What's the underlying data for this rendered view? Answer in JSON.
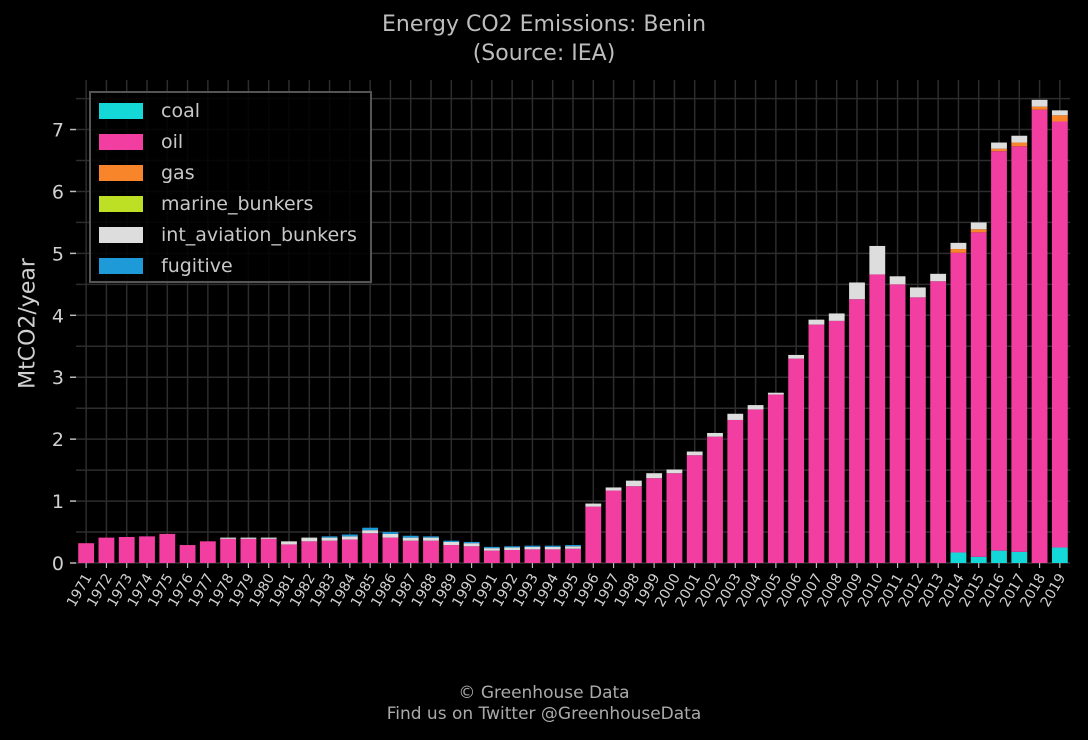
{
  "title": "Energy CO2 Emissions: Benin",
  "subtitle": "(Source: IEA)",
  "footer_line1": "© Greenhouse Data",
  "footer_line2": "Find us on Twitter @GreenhouseData",
  "colors": {
    "coal": "#14d7d7",
    "oil": "#f23ea1",
    "gas": "#f9852a",
    "marine_bunkers": "#bde024",
    "int_aviation_bunkers": "#dddddd",
    "fugitive": "#1f9ad9",
    "grid": "#2d2d2d",
    "background": "#000000"
  },
  "chart_data": {
    "type": "bar",
    "stacked": true,
    "title": "Energy CO2 Emissions: Benin",
    "subtitle": "(Source: IEA)",
    "ylabel": "MtCO2/year",
    "xlabel": "",
    "ylim": [
      0,
      7.8
    ],
    "yticks": [
      0,
      1,
      2,
      3,
      4,
      5,
      6,
      7
    ],
    "grid": true,
    "legend_position": "top-left",
    "categories": [
      "1971",
      "1972",
      "1973",
      "1974",
      "1975",
      "1976",
      "1977",
      "1978",
      "1979",
      "1980",
      "1981",
      "1982",
      "1983",
      "1984",
      "1985",
      "1986",
      "1987",
      "1988",
      "1989",
      "1990",
      "1991",
      "1992",
      "1993",
      "1994",
      "1995",
      "1996",
      "1997",
      "1998",
      "1999",
      "2000",
      "2001",
      "2002",
      "2003",
      "2004",
      "2005",
      "2006",
      "2007",
      "2008",
      "2009",
      "2010",
      "2011",
      "2012",
      "2013",
      "2014",
      "2015",
      "2016",
      "2017",
      "2018",
      "2019"
    ],
    "series": [
      {
        "name": "coal",
        "values": [
          0,
          0,
          0,
          0,
          0,
          0,
          0,
          0,
          0,
          0,
          0,
          0,
          0,
          0,
          0,
          0,
          0,
          0,
          0,
          0,
          0,
          0,
          0,
          0,
          0,
          0,
          0,
          0,
          0,
          0,
          0,
          0,
          0,
          0,
          0,
          0,
          0,
          0,
          0,
          0,
          0,
          0,
          0,
          0.17,
          0.1,
          0.2,
          0.18,
          0,
          0.25
        ]
      },
      {
        "name": "oil",
        "values": [
          0.32,
          0.41,
          0.42,
          0.43,
          0.47,
          0.29,
          0.35,
          0.39,
          0.39,
          0.39,
          0.3,
          0.35,
          0.36,
          0.38,
          0.48,
          0.41,
          0.36,
          0.36,
          0.29,
          0.27,
          0.2,
          0.21,
          0.22,
          0.22,
          0.23,
          0.91,
          1.17,
          1.24,
          1.37,
          1.45,
          1.74,
          2.04,
          2.31,
          2.48,
          2.72,
          3.3,
          3.85,
          3.91,
          4.26,
          4.66,
          4.5,
          4.29,
          4.55,
          4.84,
          5.24,
          6.45,
          6.55,
          7.32,
          6.88
        ]
      },
      {
        "name": "gas",
        "values": [
          0,
          0,
          0,
          0,
          0,
          0,
          0,
          0,
          0,
          0,
          0,
          0,
          0,
          0,
          0,
          0,
          0,
          0,
          0,
          0,
          0,
          0,
          0,
          0,
          0,
          0,
          0,
          0,
          0,
          0,
          0,
          0,
          0,
          0,
          0,
          0,
          0,
          0,
          0,
          0,
          0,
          0,
          0,
          0.06,
          0.05,
          0.04,
          0.06,
          0.05,
          0.1
        ]
      },
      {
        "name": "marine_bunkers",
        "values": [
          0,
          0,
          0,
          0,
          0,
          0,
          0,
          0,
          0,
          0,
          0,
          0,
          0,
          0,
          0,
          0,
          0,
          0,
          0,
          0,
          0,
          0,
          0,
          0,
          0,
          0,
          0,
          0,
          0,
          0,
          0,
          0,
          0,
          0,
          0,
          0,
          0,
          0,
          0,
          0,
          0,
          0,
          0,
          0,
          0,
          0,
          0,
          0,
          0
        ]
      },
      {
        "name": "int_aviation_bunkers",
        "values": [
          0,
          0,
          0,
          0,
          0,
          0,
          0,
          0.02,
          0.02,
          0.02,
          0.05,
          0.06,
          0.05,
          0.05,
          0.05,
          0.06,
          0.05,
          0.05,
          0.05,
          0.05,
          0.04,
          0.04,
          0.04,
          0.04,
          0.04,
          0.05,
          0.05,
          0.09,
          0.08,
          0.06,
          0.06,
          0.06,
          0.1,
          0.07,
          0.03,
          0.06,
          0.08,
          0.12,
          0.27,
          0.46,
          0.13,
          0.16,
          0.12,
          0.1,
          0.11,
          0.1,
          0.11,
          0.11,
          0.08
        ]
      },
      {
        "name": "fugitive",
        "values": [
          0,
          0,
          0,
          0,
          0,
          0,
          0,
          0,
          0,
          0,
          0,
          0,
          0.02,
          0.03,
          0.04,
          0.03,
          0.03,
          0.02,
          0.02,
          0.02,
          0.02,
          0.02,
          0.02,
          0.02,
          0.02,
          0,
          0,
          0,
          0,
          0,
          0,
          0,
          0,
          0,
          0,
          0,
          0,
          0,
          0,
          0,
          0,
          0,
          0,
          0,
          0,
          0,
          0,
          0,
          0
        ]
      }
    ]
  }
}
